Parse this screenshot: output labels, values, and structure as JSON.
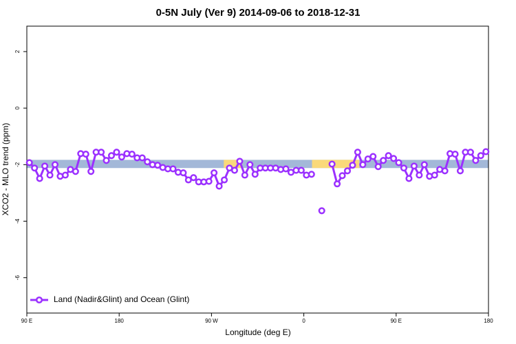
{
  "chart_data": {
    "type": "line",
    "title": "0-5N July (Ver 9)   2014-09-06 to 2018-12-31",
    "x_label": "Longitude (deg E)",
    "y_label": "XCO2 - MLO trend (ppm)",
    "x": [
      92.5,
      97.5,
      102.5,
      107.5,
      112.5,
      117.5,
      122.5,
      127.5,
      132.5,
      137.5,
      142.5,
      147.5,
      152.5,
      157.5,
      162.5,
      167.5,
      172.5,
      177.5,
      182.5,
      187.5,
      192.5,
      197.5,
      202.5,
      207.5,
      212.5,
      217.5,
      222.5,
      227.5,
      232.5,
      237.5,
      242.5,
      247.5,
      252.5,
      257.5,
      262.5,
      267.5,
      272.5,
      277.5,
      282.5,
      287.5,
      292.5,
      297.5,
      302.5,
      307.5,
      312.5,
      317.5,
      322.5,
      327.5,
      332.5,
      337.5,
      342.5,
      347.5,
      352.5,
      357.5,
      362.5,
      367.5,
      372.5,
      377.5,
      382.5,
      387.5,
      392.5,
      397.5,
      402.5,
      407.5,
      412.5,
      417.5,
      422.5,
      427.5,
      432.5,
      437.5,
      442.5,
      447.5,
      452.5,
      457.5,
      462.5,
      467.5,
      472.5,
      477.5,
      482.5,
      487.5,
      492.5,
      497.5,
      502.5,
      507.5,
      512.5,
      517.5,
      522.5,
      527.5,
      532.5,
      537.5
    ],
    "series": [
      {
        "name": "Land (Nadir&Glint) and Ocean (Glint)",
        "color": "#9b30ff",
        "values": [
          -1.93,
          -2.12,
          -2.49,
          -2.05,
          -2.37,
          -2.0,
          -2.41,
          -2.37,
          -2.17,
          -2.24,
          -1.61,
          -1.63,
          -2.24,
          -1.56,
          -1.56,
          -1.85,
          -1.68,
          -1.56,
          -1.73,
          -1.61,
          -1.63,
          -1.76,
          -1.76,
          -1.9,
          -2.0,
          -2.02,
          -2.1,
          -2.15,
          -2.15,
          -2.27,
          -2.29,
          -2.54,
          -2.46,
          -2.61,
          -2.61,
          -2.59,
          -2.29,
          -2.76,
          -2.54,
          -2.12,
          -2.2,
          -1.88,
          -2.37,
          -2.0,
          -2.34,
          -2.12,
          -2.12,
          -2.12,
          -2.12,
          -2.17,
          -2.15,
          -2.27,
          -2.2,
          -2.2,
          -2.37,
          -2.34,
          null,
          -3.63,
          null,
          -1.98,
          -2.68,
          -2.39,
          -2.22,
          -2.02,
          -1.56,
          -2.0,
          -1.8,
          -1.71,
          -2.07,
          -1.85,
          -1.68,
          -1.78,
          -1.93,
          -2.12,
          -2.49,
          -2.05,
          -2.37,
          -2.0,
          -2.41,
          -2.37,
          -2.17,
          -2.22,
          -1.61,
          -1.63,
          -2.22,
          -1.56,
          -1.56,
          -1.85,
          -1.68,
          -1.54
        ]
      }
    ],
    "xlim": [
      90,
      540
    ],
    "xticks": [
      {
        "value": 90,
        "label": "90 E"
      },
      180,
      {
        "value": 270,
        "label": "90 W"
      },
      {
        "value": 360,
        "label": "0"
      },
      {
        "value": 450,
        "label": "90 E"
      },
      {
        "value": 540,
        "label": "180"
      }
    ],
    "ylim": [
      -7.25,
      2.9
    ],
    "yticks": [
      2,
      0,
      -2,
      -4,
      -6
    ],
    "band": {
      "ylim": [
        -2.12,
        -1.83
      ],
      "color": "#a3b8d8",
      "segments": [
        {
          "xlim": [
            282,
            300
          ],
          "color": "#fad97a"
        },
        {
          "xlim": [
            368,
            414
          ],
          "color": "#fad97a"
        }
      ]
    },
    "legend": "bottomleft"
  }
}
